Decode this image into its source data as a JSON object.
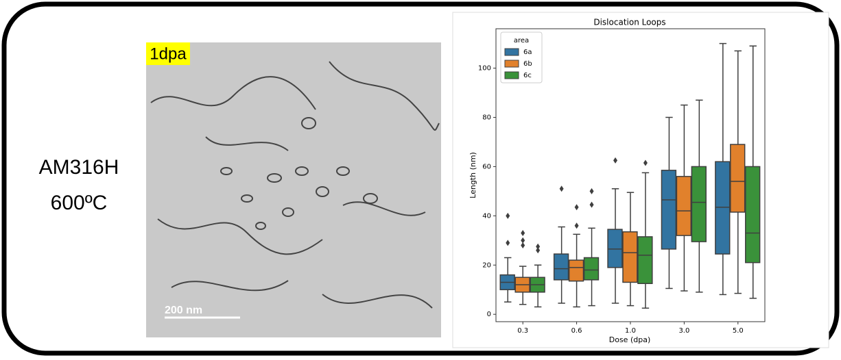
{
  "sample_label": {
    "material": "AM316H",
    "temperature": "600ºC"
  },
  "micrograph": {
    "dose_badge": "1dpa",
    "scale_bar": "200 nm"
  },
  "chart_data": {
    "type": "box",
    "title": "Dislocation Loops",
    "x_label": "Dose (dpa)",
    "y_label": "Length (nm)",
    "categories": [
      "0.3",
      "0.6",
      "1.0",
      "3.0",
      "5.0"
    ],
    "legend_title": "area",
    "legend": "upper left",
    "ylim": [
      -3,
      116
    ],
    "yticks": [
      0,
      20,
      40,
      60,
      80,
      100
    ],
    "series": [
      {
        "name": "6a",
        "color": "#3274a1",
        "boxes": [
          {
            "low": 5,
            "q1": 10,
            "median": 13,
            "q3": 16,
            "high": 23,
            "outliers": [
              29,
              40
            ]
          },
          {
            "low": 4.5,
            "q1": 14,
            "median": 18.5,
            "q3": 24.5,
            "high": 35.5,
            "outliers": [
              51
            ]
          },
          {
            "low": 4.5,
            "q1": 19,
            "median": 26.5,
            "q3": 34.5,
            "high": 51,
            "outliers": [
              62.5
            ]
          },
          {
            "low": 10.5,
            "q1": 26.5,
            "median": 46.5,
            "q3": 58.5,
            "high": 80,
            "outliers": []
          },
          {
            "low": 8,
            "q1": 24.5,
            "median": 43.5,
            "q3": 62,
            "high": 110,
            "outliers": []
          }
        ]
      },
      {
        "name": "6b",
        "color": "#e1812c",
        "boxes": [
          {
            "low": 4,
            "q1": 9,
            "median": 12,
            "q3": 15,
            "high": 19.5,
            "outliers": [
              28,
              30,
              33
            ]
          },
          {
            "low": 3,
            "q1": 13.5,
            "median": 19,
            "q3": 22,
            "high": 32.5,
            "outliers": [
              36,
              43.5
            ]
          },
          {
            "low": 3.5,
            "q1": 13,
            "median": 25,
            "q3": 33.5,
            "high": 49.5,
            "outliers": []
          },
          {
            "low": 9.5,
            "q1": 32,
            "median": 42,
            "q3": 56,
            "high": 85,
            "outliers": []
          },
          {
            "low": 8.5,
            "q1": 41.5,
            "median": 54,
            "q3": 69,
            "high": 107,
            "outliers": []
          }
        ]
      },
      {
        "name": "6c",
        "color": "#3a923a",
        "boxes": [
          {
            "low": 3,
            "q1": 9,
            "median": 12,
            "q3": 15,
            "high": 20,
            "outliers": [
              26,
              27.5
            ]
          },
          {
            "low": 3.5,
            "q1": 14,
            "median": 18,
            "q3": 23,
            "high": 35,
            "outliers": [
              44.5,
              50
            ]
          },
          {
            "low": 2.5,
            "q1": 12.5,
            "median": 24,
            "q3": 31.5,
            "high": 57.5,
            "outliers": [
              61.5
            ]
          },
          {
            "low": 9,
            "q1": 29.5,
            "median": 45.5,
            "q3": 60,
            "high": 87,
            "outliers": []
          },
          {
            "low": 6.5,
            "q1": 21,
            "median": 33,
            "q3": 60,
            "high": 109,
            "outliers": []
          }
        ]
      }
    ]
  }
}
